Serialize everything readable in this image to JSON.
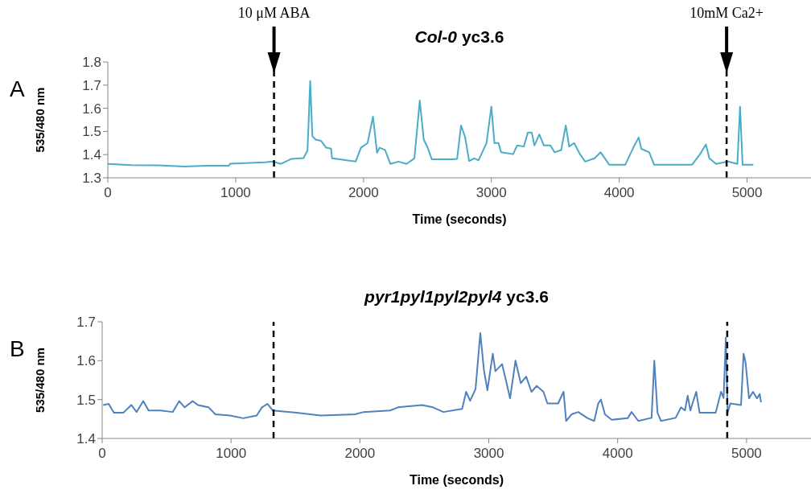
{
  "chart_data": [
    {
      "type": "line",
      "title": "Col-0 yc3.6",
      "xlabel": "Time (seconds)",
      "ylabel": "535/480 nm",
      "annotations": [
        "A"
      ],
      "marker": "none",
      "line_style": "solid",
      "xlim": [
        0,
        5500
      ],
      "xticks": [
        0,
        1000,
        2000,
        3000,
        4000,
        5000
      ],
      "ylim": [
        1.3,
        1.8
      ],
      "yticks": [
        1.3,
        1.4,
        1.5,
        1.6,
        1.7,
        1.8
      ],
      "ref_lines": [
        {
          "axis": "x",
          "value": 1300,
          "label": "10 μM ABA",
          "color": "#000000",
          "line_style": "dashed"
        },
        {
          "axis": "x",
          "value": 4840,
          "label": "10mM Ca2+",
          "color": "#000000",
          "line_style": "dashed"
        }
      ],
      "series": [
        {
          "color": "#4bacc6",
          "x": [
            0,
            184,
            393,
            602,
            769,
            946,
            958,
            1228,
            1291,
            1354,
            1437,
            1531,
            1562,
            1583,
            1600,
            1625,
            1667,
            1708,
            1746,
            1754,
            1938,
            1980,
            2032,
            2074,
            2106,
            2126,
            2168,
            2210,
            2273,
            2336,
            2398,
            2440,
            2471,
            2502,
            2534,
            2690,
            2732,
            2763,
            2794,
            2826,
            2867,
            2899,
            2962,
            3000,
            3024,
            3056,
            3076,
            3170,
            3202,
            3254,
            3285,
            3316,
            3337,
            3375,
            3410,
            3462,
            3494,
            3546,
            3582,
            3609,
            3647,
            3693,
            3734,
            3807,
            3855,
            3880,
            3922,
            4047,
            4110,
            4152,
            4173,
            4235,
            4273,
            4444,
            4569,
            4632,
            4678,
            4705,
            4757,
            4851,
            4924,
            4945,
            4965,
            5049
          ],
          "values": [
            1.36,
            1.355,
            1.354,
            1.349,
            1.352,
            1.352,
            1.361,
            1.367,
            1.37,
            1.36,
            1.382,
            1.385,
            1.418,
            1.718,
            1.48,
            1.465,
            1.46,
            1.43,
            1.426,
            1.384,
            1.37,
            1.43,
            1.45,
            1.564,
            1.408,
            1.43,
            1.42,
            1.36,
            1.37,
            1.36,
            1.384,
            1.633,
            1.465,
            1.43,
            1.38,
            1.38,
            1.382,
            1.526,
            1.477,
            1.373,
            1.384,
            1.375,
            1.45,
            1.607,
            1.45,
            1.45,
            1.41,
            1.402,
            1.44,
            1.435,
            1.495,
            1.495,
            1.44,
            1.487,
            1.44,
            1.44,
            1.41,
            1.42,
            1.526,
            1.435,
            1.45,
            1.402,
            1.37,
            1.384,
            1.41,
            1.39,
            1.356,
            1.356,
            1.43,
            1.474,
            1.425,
            1.41,
            1.356,
            1.356,
            1.356,
            1.402,
            1.444,
            1.384,
            1.36,
            1.37,
            1.36,
            1.607,
            1.356,
            1.356
          ]
        }
      ]
    },
    {
      "type": "line",
      "title": "pyr1pyl1pyl2pyl4 yc3.6",
      "xlabel": "Time (seconds)",
      "ylabel": "535/480 nm",
      "annotations": [
        "B"
      ],
      "marker": "none",
      "line_style": "solid",
      "xlim": [
        0,
        5500
      ],
      "xticks": [
        0,
        1000,
        2000,
        3000,
        4000,
        5000
      ],
      "ylim": [
        1.4,
        1.7
      ],
      "yticks": [
        1.4,
        1.5,
        1.6,
        1.7
      ],
      "ref_lines": [
        {
          "axis": "x",
          "value": 1330,
          "color": "#000000",
          "line_style": "dashed"
        },
        {
          "axis": "x",
          "value": 4850,
          "color": "#000000",
          "line_style": "dashed"
        }
      ],
      "series": [
        {
          "color": "#4f81bd",
          "x": [
            8,
            50,
            91,
            164,
            226,
            267,
            319,
            360,
            453,
            547,
            598,
            640,
            702,
            743,
            826,
            878,
            992,
            1095,
            1199,
            1240,
            1282,
            1323,
            1509,
            1695,
            1964,
            2027,
            2234,
            2296,
            2483,
            2566,
            2648,
            2793,
            2824,
            2855,
            2897,
            2934,
            2962,
            2989,
            3031,
            3051,
            3103,
            3134,
            3165,
            3207,
            3248,
            3290,
            3331,
            3372,
            3424,
            3455,
            3538,
            3580,
            3600,
            3642,
            3694,
            3767,
            3818,
            3849,
            3870,
            3901,
            3953,
            4077,
            4108,
            4160,
            4263,
            4284,
            4309,
            4336,
            4450,
            4491,
            4522,
            4543,
            4564,
            4609,
            4636,
            4698,
            4760,
            4802,
            4822,
            4839,
            4853,
            4874,
            4957,
            4977,
            4992,
            5019,
            5050,
            5081,
            5102,
            5112
          ],
          "values": [
            1.486,
            1.489,
            1.466,
            1.466,
            1.486,
            1.468,
            1.496,
            1.472,
            1.472,
            1.468,
            1.496,
            1.48,
            1.496,
            1.486,
            1.48,
            1.462,
            1.459,
            1.452,
            1.459,
            1.48,
            1.489,
            1.472,
            1.466,
            1.459,
            1.462,
            1.468,
            1.472,
            1.48,
            1.486,
            1.48,
            1.468,
            1.476,
            1.52,
            1.497,
            1.527,
            1.671,
            1.576,
            1.524,
            1.618,
            1.573,
            1.591,
            1.548,
            1.503,
            1.6,
            1.542,
            1.559,
            1.52,
            1.535,
            1.52,
            1.49,
            1.49,
            1.52,
            1.445,
            1.462,
            1.468,
            1.452,
            1.445,
            1.49,
            1.5,
            1.462,
            1.448,
            1.452,
            1.468,
            1.445,
            1.453,
            1.6,
            1.466,
            1.445,
            1.453,
            1.48,
            1.472,
            1.51,
            1.472,
            1.52,
            1.466,
            1.466,
            1.466,
            1.52,
            1.504,
            1.659,
            1.466,
            1.49,
            1.486,
            1.618,
            1.596,
            1.503,
            1.52,
            1.503,
            1.514,
            1.493
          ]
        }
      ]
    }
  ]
}
